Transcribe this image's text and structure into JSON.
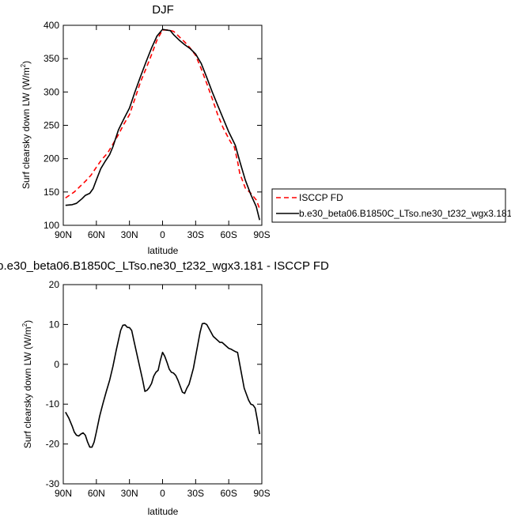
{
  "chart_data": [
    {
      "type": "line",
      "title": "DJF",
      "xlabel": "latitude",
      "ylabel_main": "Surf clearsky down LW (W/m",
      "ylabel_sup": "2",
      "ylabel_tail": ")",
      "xlim": [
        -90,
        90
      ],
      "ylim": [
        100,
        400
      ],
      "x_ticks": [
        {
          "value": -90,
          "label": "90N"
        },
        {
          "value": -60,
          "label": "60N"
        },
        {
          "value": -30,
          "label": "30N"
        },
        {
          "value": 0,
          "label": "0"
        },
        {
          "value": 30,
          "label": "30S"
        },
        {
          "value": 60,
          "label": "60S"
        },
        {
          "value": 90,
          "label": "90S"
        }
      ],
      "y_ticks": [
        {
          "value": 100,
          "label": "100"
        },
        {
          "value": 150,
          "label": "150"
        },
        {
          "value": 200,
          "label": "200"
        },
        {
          "value": 250,
          "label": "250"
        },
        {
          "value": 300,
          "label": "300"
        },
        {
          "value": 350,
          "label": "350"
        },
        {
          "value": 400,
          "label": "400"
        }
      ],
      "legend_position": "right",
      "series": [
        {
          "name": "ISCCP FD",
          "color": "#ff0000",
          "dash": "dashed",
          "x": [
            -88,
            -80,
            -75,
            -70,
            -65,
            -60,
            -55,
            -50,
            -45,
            -40,
            -35,
            -30,
            -25,
            -20,
            -15,
            -10,
            -5,
            0,
            5,
            10,
            15,
            20,
            25,
            30,
            35,
            40,
            45,
            50,
            55,
            60,
            62,
            65,
            68,
            70,
            75,
            80,
            85,
            88
          ],
          "y": [
            141,
            150,
            158,
            166,
            175,
            187,
            199,
            208,
            222,
            236,
            252,
            266,
            290,
            315,
            335,
            356,
            378,
            393,
            393,
            391,
            383,
            375,
            366,
            355,
            335,
            313,
            290,
            266,
            246,
            230,
            224,
            218,
            196,
            178,
            156,
            148,
            138,
            125
          ]
        },
        {
          "name": "b.e30_beta06.B1850C_LTso.ne30_t232_wgx3.181",
          "color": "#000000",
          "dash": "solid",
          "x": [
            -88,
            -82,
            -78,
            -73,
            -70,
            -66,
            -63,
            -60,
            -56,
            -52,
            -48,
            -45,
            -40,
            -35,
            -30,
            -25,
            -20,
            -15,
            -10,
            -5,
            0,
            3,
            7,
            10,
            15,
            20,
            25,
            30,
            35,
            40,
            45,
            50,
            55,
            60,
            63,
            66,
            70,
            75,
            80,
            85,
            88
          ],
          "y": [
            130,
            131,
            133,
            140,
            145,
            148,
            155,
            168,
            185,
            196,
            206,
            218,
            243,
            260,
            276,
            300,
            323,
            345,
            366,
            384,
            394,
            393,
            392,
            386,
            378,
            371,
            365,
            357,
            343,
            322,
            300,
            280,
            260,
            240,
            230,
            220,
            196,
            168,
            146,
            128,
            108
          ]
        }
      ]
    },
    {
      "type": "line",
      "title": "b.e30_beta06.B1850C_LTso.ne30_t232_wgx3.181 - ISCCP FD",
      "xlabel": "latitude",
      "ylabel_main": "Surf clearsky down LW (W/m",
      "ylabel_sup": "2",
      "ylabel_tail": ")",
      "xlim": [
        -90,
        90
      ],
      "ylim": [
        -30,
        20
      ],
      "x_ticks": [
        {
          "value": -90,
          "label": "90N"
        },
        {
          "value": -60,
          "label": "60N"
        },
        {
          "value": -30,
          "label": "30N"
        },
        {
          "value": 0,
          "label": "0"
        },
        {
          "value": 30,
          "label": "30S"
        },
        {
          "value": 60,
          "label": "60S"
        },
        {
          "value": 90,
          "label": "90S"
        }
      ],
      "y_ticks": [
        {
          "value": -30,
          "label": "-30"
        },
        {
          "value": -20,
          "label": "-20"
        },
        {
          "value": -10,
          "label": "-10"
        },
        {
          "value": 0,
          "label": "0"
        },
        {
          "value": 10,
          "label": "10"
        },
        {
          "value": 20,
          "label": "20"
        }
      ],
      "series": [
        {
          "name": "",
          "color": "#000000",
          "dash": "solid",
          "x": [
            -88,
            -85,
            -82,
            -80,
            -78,
            -76,
            -74,
            -72,
            -70,
            -68,
            -66,
            -64,
            -62,
            -60,
            -57,
            -54,
            -51,
            -48,
            -45,
            -42,
            -40,
            -38,
            -36,
            -34,
            -32,
            -30,
            -28,
            -26,
            -24,
            -22,
            -20,
            -18,
            -16,
            -14,
            -12,
            -10,
            -8,
            -6,
            -4,
            -2,
            0,
            2,
            4,
            6,
            8,
            10,
            12,
            14,
            16,
            18,
            20,
            22,
            24,
            26,
            28,
            30,
            32,
            34,
            36,
            38,
            40,
            42,
            44,
            46,
            48,
            50,
            52,
            54,
            56,
            58,
            60,
            62,
            64,
            66,
            68,
            70,
            72,
            74,
            76,
            78,
            80,
            82,
            84,
            86,
            88
          ],
          "y": [
            -12,
            -13.5,
            -15.5,
            -17,
            -17.8,
            -18,
            -17.5,
            -17.2,
            -17.8,
            -19.5,
            -20.8,
            -20.8,
            -19.5,
            -17,
            -13,
            -9.8,
            -6.8,
            -4,
            -0.5,
            3.5,
            6,
            8.5,
            9.8,
            9.9,
            9.3,
            9.2,
            8.5,
            6,
            3.5,
            1,
            -1.5,
            -4,
            -6.8,
            -6.5,
            -5.8,
            -4.8,
            -3,
            -2,
            -1.5,
            1,
            3,
            2,
            0.5,
            -1.2,
            -2,
            -2.2,
            -2.8,
            -4,
            -5.5,
            -7,
            -7.3,
            -6,
            -5,
            -3,
            -1,
            2,
            5,
            8,
            10.2,
            10.3,
            10,
            9,
            8,
            7,
            6.5,
            6,
            5.5,
            5.5,
            5,
            4.5,
            4,
            3.8,
            3.5,
            3.2,
            3,
            0,
            -3,
            -6,
            -7.5,
            -9,
            -10,
            -10.2,
            -11,
            -14,
            -17.5
          ]
        }
      ]
    }
  ]
}
